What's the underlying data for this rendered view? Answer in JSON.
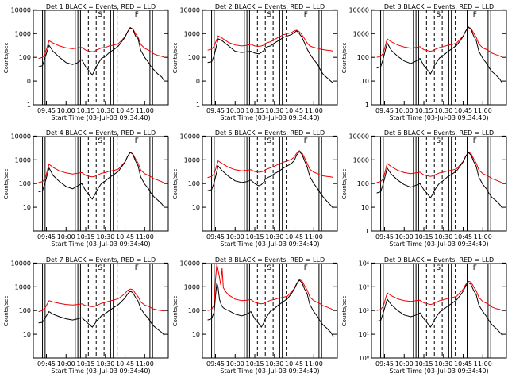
{
  "chart_data": {
    "type": "line",
    "layout": "3x3 panels",
    "common": {
      "xlabel": "Start Time (03-Jul-03 09:34:40)",
      "ylabel": "Counts/sec",
      "x_ticks": [
        "09:45",
        "10:00",
        "10:15",
        "10:30",
        "10:45",
        "11:00"
      ],
      "x_tick_minutes": [
        0,
        15,
        30,
        45,
        60,
        75
      ],
      "xlim_minutes": [
        -10,
        93
      ],
      "ylim": [
        1,
        14000
      ],
      "y_ticks_plain": [
        "1",
        "10",
        "100",
        "1000",
        "10000"
      ],
      "y_ticks_power": [
        "10⁰",
        "10¹",
        "10²",
        "10³",
        "10⁴"
      ],
      "y_tick_values": [
        1,
        10,
        100,
        1000,
        10000
      ],
      "title_text": "BLACK = Events, RED = LLD",
      "marker_labels": [
        "S",
        "F"
      ],
      "solid_lines_minutes": [
        -3,
        -1,
        22,
        24,
        26,
        49,
        51,
        63,
        79,
        81
      ],
      "dashed_lines_minutes": [
        32,
        38,
        44,
        54
      ]
    },
    "series_legend": [
      {
        "name": "Events",
        "color": "#000000"
      },
      {
        "name": "LLD",
        "color": "#ee0000"
      }
    ],
    "panels": [
      {
        "label": "Det 1",
        "x": [
          -6,
          -3,
          -1,
          2,
          5,
          10,
          15,
          20,
          24,
          27,
          30,
          33,
          35,
          37,
          38,
          40,
          42,
          45,
          48,
          52,
          55,
          58,
          60,
          62,
          64,
          66,
          68,
          70,
          72,
          75,
          78,
          80,
          82,
          85,
          88,
          90
        ],
        "events": [
          40,
          45,
          100,
          320,
          180,
          100,
          60,
          50,
          60,
          80,
          40,
          25,
          18,
          30,
          40,
          60,
          90,
          110,
          160,
          220,
          300,
          500,
          700,
          1200,
          1800,
          1500,
          800,
          600,
          200,
          100,
          60,
          40,
          30,
          20,
          15,
          10
        ],
        "lld": [
          90,
          100,
          140,
          500,
          400,
          300,
          250,
          230,
          250,
          260,
          200,
          180,
          170,
          180,
          200,
          220,
          250,
          260,
          300,
          330,
          380,
          560,
          750,
          1200,
          1700,
          1600,
          1000,
          700,
          350,
          240,
          200,
          170,
          140,
          120,
          110,
          100
        ]
      },
      {
        "label": "Det 2",
        "x": [
          -6,
          -3,
          -1,
          2,
          5,
          10,
          15,
          20,
          24,
          27,
          30,
          33,
          35,
          37,
          38,
          40,
          42,
          45,
          48,
          52,
          55,
          58,
          60,
          62,
          64,
          66,
          68,
          70,
          72,
          75,
          78,
          80,
          82,
          85,
          88,
          90
        ],
        "events": [
          60,
          65,
          120,
          600,
          500,
          300,
          180,
          160,
          170,
          180,
          150,
          140,
          160,
          200,
          250,
          280,
          300,
          400,
          500,
          700,
          800,
          900,
          1100,
          1300,
          1000,
          700,
          400,
          220,
          140,
          80,
          50,
          30,
          20,
          14,
          10,
          8
        ],
        "lld": [
          200,
          220,
          300,
          800,
          650,
          420,
          330,
          300,
          320,
          350,
          300,
          290,
          300,
          330,
          380,
          420,
          450,
          560,
          700,
          900,
          1000,
          1100,
          1300,
          1400,
          1200,
          900,
          600,
          400,
          300,
          260,
          240,
          220,
          210,
          200,
          190,
          180
        ]
      },
      {
        "label": "Det 3",
        "x": [
          -6,
          -3,
          -1,
          2,
          5,
          10,
          15,
          20,
          24,
          27,
          30,
          33,
          35,
          37,
          38,
          40,
          42,
          45,
          48,
          52,
          55,
          58,
          60,
          62,
          64,
          66,
          68,
          70,
          72,
          75,
          78,
          80,
          82,
          85,
          88,
          90
        ],
        "events": [
          35,
          40,
          90,
          400,
          200,
          110,
          70,
          55,
          70,
          90,
          45,
          28,
          20,
          32,
          45,
          65,
          95,
          120,
          170,
          240,
          320,
          520,
          760,
          1300,
          1900,
          1500,
          800,
          500,
          180,
          90,
          55,
          35,
          25,
          18,
          12,
          8
        ],
        "lld": [
          100,
          110,
          150,
          600,
          450,
          330,
          270,
          240,
          260,
          280,
          210,
          190,
          180,
          190,
          210,
          230,
          260,
          280,
          320,
          350,
          400,
          600,
          800,
          1300,
          1800,
          1700,
          1050,
          700,
          360,
          250,
          210,
          180,
          150,
          130,
          115,
          100
        ]
      },
      {
        "label": "Det 4",
        "x": [
          -6,
          -3,
          -1,
          2,
          5,
          10,
          15,
          20,
          24,
          27,
          30,
          33,
          35,
          37,
          38,
          40,
          42,
          45,
          48,
          52,
          55,
          58,
          60,
          62,
          64,
          66,
          68,
          70,
          72,
          75,
          78,
          80,
          82,
          85,
          88,
          90
        ],
        "events": [
          45,
          50,
          110,
          450,
          220,
          120,
          75,
          60,
          80,
          100,
          50,
          30,
          22,
          35,
          45,
          70,
          100,
          130,
          180,
          250,
          330,
          560,
          800,
          1400,
          2100,
          1700,
          900,
          550,
          190,
          95,
          60,
          38,
          28,
          20,
          14,
          10
        ],
        "lld": [
          110,
          120,
          160,
          650,
          480,
          340,
          280,
          250,
          270,
          290,
          220,
          200,
          190,
          200,
          220,
          240,
          270,
          290,
          330,
          360,
          410,
          620,
          820,
          1400,
          2000,
          1800,
          1100,
          720,
          370,
          260,
          220,
          190,
          160,
          140,
          120,
          105
        ]
      },
      {
        "label": "Det 5",
        "x": [
          -6,
          -3,
          -1,
          2,
          5,
          10,
          15,
          20,
          24,
          27,
          30,
          33,
          35,
          37,
          38,
          40,
          42,
          45,
          48,
          52,
          55,
          58,
          60,
          62,
          64,
          66,
          68,
          70,
          72,
          75,
          78,
          80,
          82,
          85,
          88,
          90
        ],
        "events": [
          50,
          55,
          110,
          550,
          350,
          200,
          130,
          110,
          120,
          140,
          100,
          80,
          90,
          120,
          150,
          180,
          200,
          260,
          320,
          450,
          560,
          700,
          900,
          1600,
          2200,
          1700,
          900,
          500,
          200,
          100,
          60,
          40,
          28,
          18,
          12,
          9
        ],
        "lld": [
          180,
          200,
          260,
          900,
          700,
          480,
          380,
          340,
          360,
          380,
          320,
          300,
          310,
          340,
          380,
          420,
          460,
          540,
          650,
          800,
          900,
          1050,
          1300,
          1900,
          2400,
          2000,
          1200,
          700,
          400,
          300,
          260,
          230,
          210,
          200,
          190,
          180
        ]
      },
      {
        "label": "Det 6",
        "x": [
          -6,
          -3,
          -1,
          2,
          5,
          10,
          15,
          20,
          24,
          27,
          30,
          33,
          35,
          37,
          38,
          40,
          42,
          45,
          48,
          52,
          55,
          58,
          60,
          62,
          64,
          66,
          68,
          70,
          72,
          75,
          78,
          80,
          82,
          85,
          88,
          90
        ],
        "events": [
          40,
          45,
          100,
          450,
          250,
          140,
          90,
          70,
          85,
          100,
          55,
          35,
          25,
          38,
          50,
          75,
          105,
          135,
          190,
          260,
          340,
          580,
          820,
          1400,
          2000,
          1600,
          850,
          520,
          185,
          92,
          58,
          36,
          26,
          19,
          13,
          9
        ],
        "lld": [
          110,
          120,
          160,
          700,
          520,
          360,
          290,
          260,
          280,
          300,
          230,
          210,
          200,
          210,
          230,
          250,
          280,
          300,
          340,
          370,
          420,
          640,
          850,
          1450,
          2050,
          1850,
          1100,
          720,
          370,
          260,
          220,
          190,
          160,
          140,
          120,
          105
        ]
      },
      {
        "label": "Det 7",
        "x": [
          -6,
          -3,
          -1,
          2,
          5,
          10,
          15,
          20,
          24,
          27,
          30,
          33,
          35,
          37,
          38,
          40,
          42,
          45,
          48,
          52,
          55,
          58,
          60,
          62,
          64,
          66,
          68,
          70,
          72,
          75,
          78,
          80,
          82,
          85,
          88,
          90
        ],
        "events": [
          30,
          32,
          50,
          90,
          70,
          55,
          45,
          40,
          45,
          50,
          35,
          25,
          20,
          28,
          35,
          45,
          60,
          75,
          100,
          140,
          180,
          260,
          340,
          500,
          650,
          560,
          360,
          250,
          120,
          70,
          45,
          30,
          22,
          16,
          12,
          9
        ],
        "lld": [
          90,
          100,
          130,
          260,
          230,
          200,
          180,
          170,
          180,
          190,
          160,
          150,
          145,
          150,
          160,
          180,
          200,
          220,
          250,
          280,
          320,
          420,
          520,
          700,
          800,
          750,
          520,
          380,
          230,
          170,
          150,
          130,
          115,
          105,
          100,
          95
        ]
      },
      {
        "label": "Det 8",
        "x": [
          -6,
          -3,
          -1,
          0,
          1,
          2,
          3,
          4,
          5,
          6,
          8,
          10,
          15,
          20,
          24,
          27,
          30,
          33,
          35,
          37,
          38,
          40,
          42,
          45,
          48,
          52,
          55,
          58,
          60,
          62,
          64,
          66,
          68,
          70,
          72,
          75,
          78,
          80,
          82,
          85,
          88,
          90
        ],
        "events": [
          40,
          45,
          90,
          400,
          1500,
          900,
          300,
          200,
          150,
          130,
          110,
          100,
          70,
          60,
          70,
          90,
          45,
          28,
          20,
          32,
          45,
          65,
          95,
          120,
          170,
          240,
          320,
          520,
          760,
          1300,
          1900,
          1500,
          800,
          500,
          180,
          90,
          55,
          35,
          25,
          18,
          12,
          8
        ],
        "lld": [
          100,
          110,
          180,
          2000,
          9000,
          5000,
          2500,
          1200,
          6000,
          900,
          600,
          450,
          300,
          260,
          270,
          290,
          220,
          200,
          190,
          200,
          220,
          240,
          270,
          290,
          330,
          360,
          410,
          620,
          820,
          1400,
          2000,
          1800,
          1100,
          720,
          370,
          260,
          220,
          190,
          160,
          140,
          120,
          105
        ]
      },
      {
        "label": "Det 9",
        "x": [
          -6,
          -3,
          -1,
          2,
          5,
          10,
          15,
          20,
          24,
          27,
          30,
          33,
          35,
          37,
          38,
          40,
          42,
          45,
          48,
          52,
          55,
          58,
          60,
          62,
          64,
          66,
          68,
          70,
          72,
          75,
          78,
          80,
          82,
          85,
          88,
          90
        ],
        "events": [
          35,
          38,
          80,
          300,
          180,
          100,
          65,
          55,
          65,
          80,
          45,
          28,
          20,
          30,
          40,
          60,
          85,
          110,
          150,
          210,
          280,
          450,
          650,
          1100,
          1500,
          1250,
          700,
          450,
          170,
          90,
          55,
          35,
          25,
          18,
          12,
          9
        ],
        "lld": [
          100,
          110,
          150,
          550,
          420,
          310,
          260,
          240,
          260,
          270,
          210,
          190,
          180,
          190,
          210,
          230,
          260,
          280,
          320,
          350,
          400,
          600,
          780,
          1250,
          1700,
          1600,
          1000,
          680,
          350,
          240,
          200,
          170,
          140,
          120,
          110,
          100
        ]
      }
    ]
  }
}
